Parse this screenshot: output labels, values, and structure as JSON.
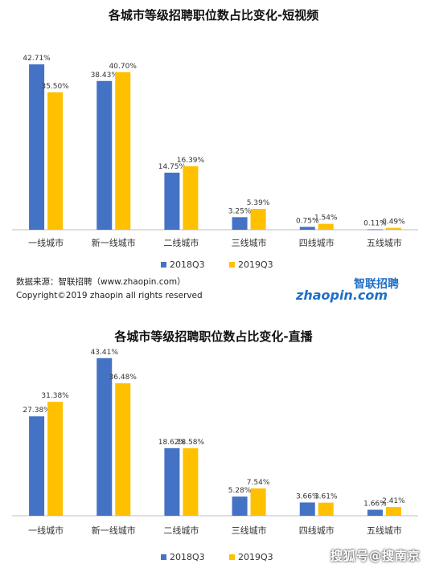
{
  "chart_data": [
    {
      "type": "bar",
      "title": "各城市等级招聘职位数占比变化-短视频",
      "categories": [
        "一线城市",
        "新一线城市",
        "二线城市",
        "三线城市",
        "四线城市",
        "五线城市"
      ],
      "series": [
        {
          "name": "2018Q3",
          "color": "#4472C4",
          "values": [
            42.71,
            38.43,
            14.75,
            3.25,
            0.75,
            0.11
          ],
          "labels": [
            "42.71%",
            "38.43%",
            "14.75%",
            "3.25%",
            "0.75%",
            "0.11%"
          ]
        },
        {
          "name": "2019Q3",
          "color": "#FFC000",
          "values": [
            35.5,
            40.7,
            16.39,
            5.39,
            1.54,
            0.49
          ],
          "labels": [
            "35.50%",
            "40.70%",
            "16.39%",
            "5.39%",
            "1.54%",
            "0.49%"
          ]
        }
      ],
      "ylim": [
        0,
        50
      ],
      "grid": false,
      "legend": "bottom"
    },
    {
      "type": "bar",
      "title": "各城市等级招聘职位数占比变化-直播",
      "categories": [
        "一线城市",
        "新一线城市",
        "二线城市",
        "三线城市",
        "四线城市",
        "五线城市"
      ],
      "series": [
        {
          "name": "2018Q3",
          "color": "#4472C4",
          "values": [
            27.38,
            43.41,
            18.62,
            5.28,
            3.66,
            1.66
          ],
          "labels": [
            "27.38%",
            "43.41%",
            "18.62%",
            "5.28%",
            "3.66%",
            "1.66%"
          ]
        },
        {
          "name": "2019Q3",
          "color": "#FFC000",
          "values": [
            31.38,
            36.48,
            18.58,
            7.54,
            3.61,
            2.41
          ],
          "labels": [
            "31.38%",
            "36.48%",
            "18.58%",
            "7.54%",
            "3.61%",
            "2.41%"
          ]
        }
      ],
      "ylim": [
        0,
        50
      ],
      "grid": false,
      "legend": "bottom"
    }
  ],
  "footer": {
    "source": "数据来源：智联招聘（www.zhaopin.com）",
    "copyright": "Copyright©2019 zhaopin all rights reserved"
  },
  "logo": {
    "cn": "智联招聘",
    "en": "zhaopin.com",
    "color_blue": "#1E6FC8",
    "color_orange": "#F39800"
  },
  "watermark": "搜狐号@搜南京"
}
